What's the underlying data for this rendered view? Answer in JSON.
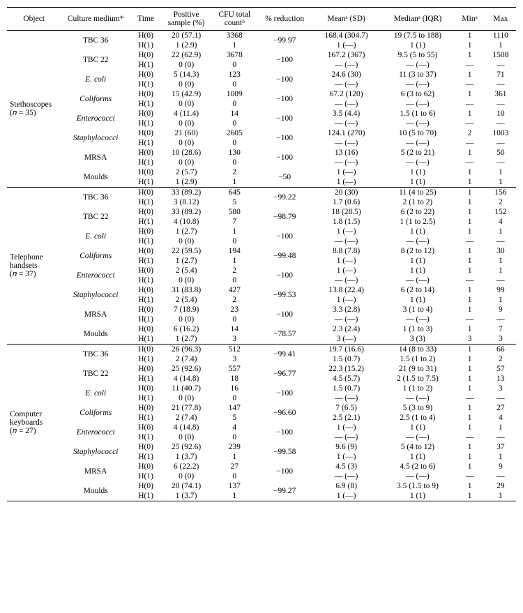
{
  "columns": [
    "Object",
    "Culture medium*",
    "Time",
    "Positive sample (%)",
    "CFU total countᵇ",
    "% reduction",
    "Meanᵃ (SD)",
    "Medianᵃ (IQR)",
    "Minᵃ",
    "Max"
  ],
  "groups": [
    {
      "object_lines": [
        "Stethoscopes",
        "(𝑛 = 35)"
      ],
      "media": [
        {
          "name": "TBC 36",
          "italic": false,
          "reduction": "−99.97",
          "h0": {
            "pos": "20 (57.1)",
            "cfu": "3368",
            "mean": "168.4 (304.7)",
            "median": "19 (7.5 to 188)",
            "min": "1",
            "max": "1110"
          },
          "h1": {
            "pos": "1 (2.9)",
            "cfu": "1",
            "mean": "1 (—)",
            "median": "1 (1)",
            "min": "1",
            "max": "1"
          }
        },
        {
          "name": "TBC 22",
          "italic": false,
          "reduction": "−100",
          "h0": {
            "pos": "22 (62.9)",
            "cfu": "3678",
            "mean": "167.2 (367)",
            "median": "9.5 (5 to 55)",
            "min": "1",
            "max": "1508"
          },
          "h1": {
            "pos": "0 (0)",
            "cfu": "0",
            "mean": "— (—)",
            "median": "— (—)",
            "min": "—",
            "max": "—"
          }
        },
        {
          "name": "E. coli",
          "italic": true,
          "reduction": "−100",
          "h0": {
            "pos": "5 (14.3)",
            "cfu": "123",
            "mean": "24.6 (30)",
            "median": "11 (3 to 37)",
            "min": "1",
            "max": "71"
          },
          "h1": {
            "pos": "0 (0)",
            "cfu": "0",
            "mean": "— (—)",
            "median": "— (—)",
            "min": "—",
            "max": "—"
          }
        },
        {
          "name": "Coliforms",
          "italic": true,
          "reduction": "−100",
          "h0": {
            "pos": "15 (42.9)",
            "cfu": "1009",
            "mean": "67.2 (120)",
            "median": "6 (3 to 62)",
            "min": "1",
            "max": "361"
          },
          "h1": {
            "pos": "0 (0)",
            "cfu": "0",
            "mean": "— (—)",
            "median": "— (—)",
            "min": "—",
            "max": "—"
          }
        },
        {
          "name": "Enterococci",
          "italic": true,
          "reduction": "−100",
          "h0": {
            "pos": "4 (11.4)",
            "cfu": "14",
            "mean": "3.5 (4.4)",
            "median": "1.5 (1 to 6)",
            "min": "1",
            "max": "10"
          },
          "h1": {
            "pos": "0 (0)",
            "cfu": "0",
            "mean": "— (—)",
            "median": "— (—)",
            "min": "—",
            "max": "—"
          }
        },
        {
          "name": "Staphylococci",
          "italic": true,
          "reduction": "−100",
          "h0": {
            "pos": "21 (60)",
            "cfu": "2605",
            "mean": "124.1 (270)",
            "median": "10 (5 to 70)",
            "min": "2",
            "max": "1003"
          },
          "h1": {
            "pos": "0 (0)",
            "cfu": "0",
            "mean": "— (—)",
            "median": "— (—)",
            "min": "—",
            "max": "—"
          }
        },
        {
          "name": "MRSA",
          "italic": false,
          "reduction": "−100",
          "h0": {
            "pos": "10 (28.6)",
            "cfu": "130",
            "mean": "13 (16)",
            "median": "5 (2 to 21)",
            "min": "1",
            "max": "50"
          },
          "h1": {
            "pos": "0 (0)",
            "cfu": "0",
            "mean": "— (—)",
            "median": "— (—)",
            "min": "—",
            "max": "—"
          }
        },
        {
          "name": "Moulds",
          "italic": false,
          "reduction": "−50",
          "h0": {
            "pos": "2 (5.7)",
            "cfu": "2",
            "mean": "1 (—)",
            "median": "1 (1)",
            "min": "1",
            "max": "1"
          },
          "h1": {
            "pos": "1 (2.9)",
            "cfu": "1",
            "mean": "1 (—)",
            "median": "1 (1)",
            "min": "1",
            "max": "1"
          }
        }
      ]
    },
    {
      "object_lines": [
        "Telephone",
        "handsets",
        "(𝑛 = 37)"
      ],
      "media": [
        {
          "name": "TBC 36",
          "italic": false,
          "reduction": "−99.22",
          "h0": {
            "pos": "33 (89.2)",
            "cfu": "645",
            "mean": "20 (30)",
            "median": "11 (4 to 25)",
            "min": "1",
            "max": "156"
          },
          "h1": {
            "pos": "3 (8.12)",
            "cfu": "5",
            "mean": "1.7 (0.6)",
            "median": "2 (1 to 2)",
            "min": "1",
            "max": "2"
          }
        },
        {
          "name": "TBC 22",
          "italic": false,
          "reduction": "−98.79",
          "h0": {
            "pos": "33 (89.2)",
            "cfu": "580",
            "mean": "18 (28.5)",
            "median": "6 (2 to 22)",
            "min": "1",
            "max": "152"
          },
          "h1": {
            "pos": "4 (10.8)",
            "cfu": "7",
            "mean": "1.8 (1.5)",
            "median": "1 (1 to 2.5)",
            "min": "1",
            "max": "4"
          }
        },
        {
          "name": "E. coli",
          "italic": true,
          "reduction": "−100",
          "h0": {
            "pos": "1 (2.7)",
            "cfu": "1",
            "mean": "1 (—)",
            "median": "1 (1)",
            "min": "1",
            "max": "1"
          },
          "h1": {
            "pos": "0 (0)",
            "cfu": "0",
            "mean": "— (—)",
            "median": "— (—)",
            "min": "—",
            "max": "—"
          }
        },
        {
          "name": "Coliforms",
          "italic": true,
          "reduction": "−99.48",
          "h0": {
            "pos": "22 (59.5)",
            "cfu": "194",
            "mean": "8.8 (7.8)",
            "median": "8 (2 to 12)",
            "min": "1",
            "max": "30"
          },
          "h1": {
            "pos": "1 (2.7)",
            "cfu": "1",
            "mean": "1 (—)",
            "median": "1 (1)",
            "min": "1",
            "max": "1"
          }
        },
        {
          "name": "Enterococci",
          "italic": true,
          "reduction": "−100",
          "h0": {
            "pos": "2 (5.4)",
            "cfu": "2",
            "mean": "1 (—)",
            "median": "1 (1)",
            "min": "1",
            "max": "1"
          },
          "h1": {
            "pos": "0 (0)",
            "cfu": "0",
            "mean": "— (—)",
            "median": "— (—)",
            "min": "—",
            "max": "—"
          }
        },
        {
          "name": "Staphylococci",
          "italic": true,
          "reduction": "−99.53",
          "h0": {
            "pos": "31 (83.8)",
            "cfu": "427",
            "mean": "13.8 (22.4)",
            "median": "6 (2 to 14)",
            "min": "1",
            "max": "99"
          },
          "h1": {
            "pos": "2 (5.4)",
            "cfu": "2",
            "mean": "1 (—)",
            "median": "1 (1)",
            "min": "1",
            "max": "1"
          }
        },
        {
          "name": "MRSA",
          "italic": false,
          "reduction": "−100",
          "h0": {
            "pos": "7 (18.9)",
            "cfu": "23",
            "mean": "3.3 (2.8)",
            "median": "3 (1 to 4)",
            "min": "1",
            "max": "9"
          },
          "h1": {
            "pos": "0 (0)",
            "cfu": "0",
            "mean": "— (—)",
            "median": "— (—)",
            "min": "—",
            "max": "—"
          }
        },
        {
          "name": "Moulds",
          "italic": false,
          "reduction": "−78.57",
          "h0": {
            "pos": "6 (16.2)",
            "cfu": "14",
            "mean": "2.3 (2.4)",
            "median": "1 (1 to 3)",
            "min": "1",
            "max": "7"
          },
          "h1": {
            "pos": "1 (2.7)",
            "cfu": "3",
            "mean": "3 (—)",
            "median": "3 (3)",
            "min": "3",
            "max": "3"
          }
        }
      ]
    },
    {
      "object_lines": [
        "Computer",
        "keyboards",
        "(𝑛 = 27)"
      ],
      "media": [
        {
          "name": "TBC 36",
          "italic": false,
          "reduction": "−99.41",
          "h0": {
            "pos": "26 (96.3)",
            "cfu": "512",
            "mean": "19.7 (16.6)",
            "median": "14 (8 to 33)",
            "min": "1",
            "max": "66"
          },
          "h1": {
            "pos": "2 (7.4)",
            "cfu": "3",
            "mean": "1.5 (0.7)",
            "median": "1.5 (1 to 2)",
            "min": "1",
            "max": "2"
          }
        },
        {
          "name": "TBC 22",
          "italic": false,
          "reduction": "−96.77",
          "h0": {
            "pos": "25 (92.6)",
            "cfu": "557",
            "mean": "22.3 (15.2)",
            "median": "21 (9 to 31)",
            "min": "1",
            "max": "57"
          },
          "h1": {
            "pos": "4 (14.8)",
            "cfu": "18",
            "mean": "4.5 (5.7)",
            "median": "2 (1.5 to 7.5)",
            "min": "1",
            "max": "13"
          }
        },
        {
          "name": "E. coli",
          "italic": true,
          "reduction": "−100",
          "h0": {
            "pos": "11 (40.7)",
            "cfu": "16",
            "mean": "1.5 (0.7)",
            "median": "1 (1 to 2)",
            "min": "1",
            "max": "3"
          },
          "h1": {
            "pos": "0 (0)",
            "cfu": "0",
            "mean": "— (—)",
            "median": "— (—)",
            "min": "—",
            "max": "—"
          }
        },
        {
          "name": "Coliforms",
          "italic": true,
          "reduction": "−96.60",
          "h0": {
            "pos": "21 (77.8)",
            "cfu": "147",
            "mean": "7 (6.5)",
            "median": "5 (3 to 9)",
            "min": "1",
            "max": "27"
          },
          "h1": {
            "pos": "2 (7.4)",
            "cfu": "5",
            "mean": "2.5 (2.1)",
            "median": "2.5 (1 to 4)",
            "min": "1",
            "max": "4"
          }
        },
        {
          "name": "Enterococci",
          "italic": true,
          "reduction": "−100",
          "h0": {
            "pos": "4 (14.8)",
            "cfu": "4",
            "mean": "1 (—)",
            "median": "1 (1)",
            "min": "1",
            "max": "1"
          },
          "h1": {
            "pos": "0 (0)",
            "cfu": "0",
            "mean": "— (—)",
            "median": "— (—)",
            "min": "—",
            "max": "—"
          }
        },
        {
          "name": "Staphylococci",
          "italic": true,
          "reduction": "−99.58",
          "h0": {
            "pos": "25 (92.6)",
            "cfu": "239",
            "mean": "9.6 (9)",
            "median": "5 (4 to 12)",
            "min": "1",
            "max": "37"
          },
          "h1": {
            "pos": "1 (3.7)",
            "cfu": "1",
            "mean": "1 (—)",
            "median": "1 (1)",
            "min": "1",
            "max": "1"
          }
        },
        {
          "name": "MRSA",
          "italic": false,
          "reduction": "−100",
          "h0": {
            "pos": "6 (22.2)",
            "cfu": "27",
            "mean": "4.5 (3)",
            "median": "4.5 (2 to 6)",
            "min": "1",
            "max": "9"
          },
          "h1": {
            "pos": "0 (0)",
            "cfu": "0",
            "mean": "— (—)",
            "median": "— (—)",
            "min": "—",
            "max": "—"
          }
        },
        {
          "name": "Moulds",
          "italic": false,
          "reduction": "−99.27",
          "h0": {
            "pos": "20 (74.1)",
            "cfu": "137",
            "mean": "6.9 (8)",
            "median": "3.5 (1.5 to 9)",
            "min": "1",
            "max": "29"
          },
          "h1": {
            "pos": "1 (3.7)",
            "cfu": "1",
            "mean": "1 (—)",
            "median": "1 (1)",
            "min": "1",
            "max": "1"
          }
        }
      ]
    }
  ],
  "h0_label": "H(0)",
  "h1_label": "H(1)",
  "col_widths": [
    "70px",
    "90px",
    "40px",
    "65px",
    "60px",
    "70px",
    "90px",
    "95px",
    "40px",
    "40px"
  ]
}
